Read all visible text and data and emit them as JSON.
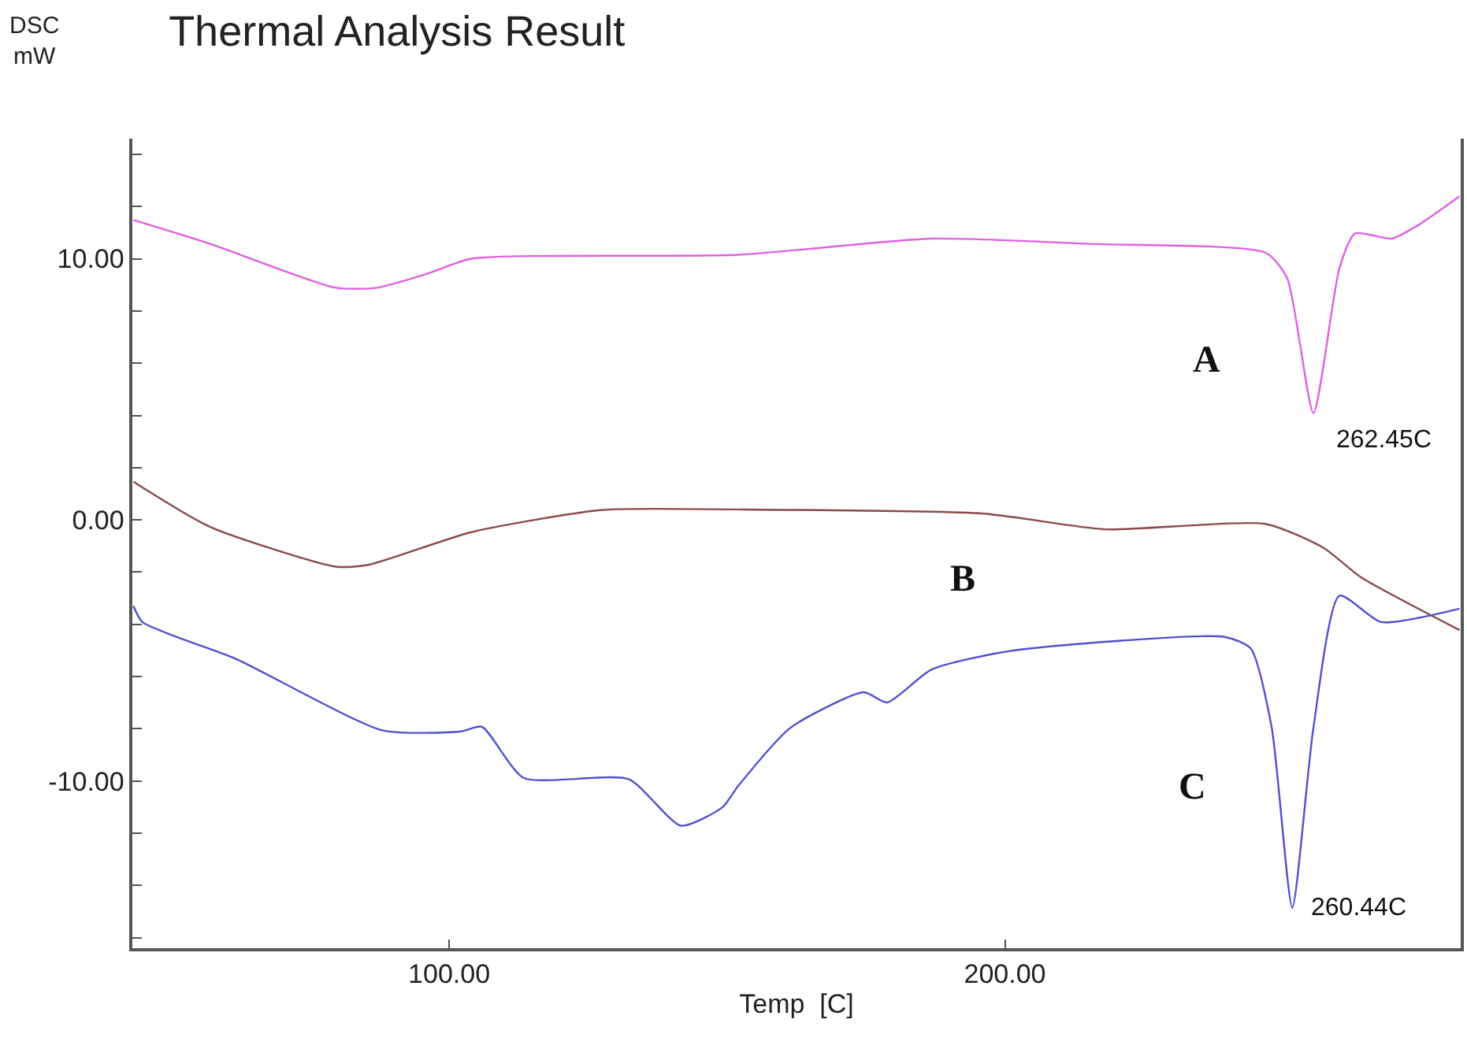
{
  "chart_data": {
    "type": "line",
    "title": "Thermal Analysis Result",
    "ylabel": "DSC\nmW",
    "xlabel": "Temp  [C]",
    "xlim": [
      43,
      282
    ],
    "ylim": [
      -16.4,
      14.6
    ],
    "xticks": [
      {
        "value": 100,
        "label": "100.00"
      },
      {
        "value": 200,
        "label": "200.00"
      }
    ],
    "yticks": [
      {
        "value": -16,
        "label": null
      },
      {
        "value": -14,
        "label": null
      },
      {
        "value": -12,
        "label": null
      },
      {
        "value": -10,
        "label": "-10.00"
      },
      {
        "value": -8,
        "label": null
      },
      {
        "value": -6,
        "label": null
      },
      {
        "value": -4,
        "label": null
      },
      {
        "value": -2,
        "label": null
      },
      {
        "value": 0,
        "label": "0.00"
      },
      {
        "value": 2,
        "label": null
      },
      {
        "value": 4,
        "label": null
      },
      {
        "value": 6,
        "label": null
      },
      {
        "value": 8,
        "label": null
      },
      {
        "value": 10,
        "label": "10.00"
      },
      {
        "value": 12,
        "label": null
      },
      {
        "value": 14,
        "label": null
      }
    ],
    "legend": false,
    "marker": "none",
    "line_style": "solid",
    "series": [
      {
        "name": "A",
        "color": "#e060e0",
        "x": [
          43.2,
          57,
          79.6,
          87.1,
          96.5,
          104,
          152,
          186.8,
          215,
          247,
          250.8,
          255.5,
          260.2,
          263,
          269.6,
          274.3,
          281.8
        ],
        "values": [
          11.48,
          10.57,
          8.89,
          8.89,
          9.46,
          10.0,
          10.15,
          10.77,
          10.57,
          10.22,
          9.25,
          4.09,
          9.66,
          10.97,
          10.77,
          11.28,
          12.39
        ]
      },
      {
        "name": "B",
        "color": "#8b4a4a",
        "x": [
          43.2,
          57,
          79.6,
          85.3,
          104,
          127.5,
          152,
          196.2,
          217.9,
          247,
          257.4,
          264,
          281.8
        ],
        "values": [
          1.46,
          -0.27,
          -1.79,
          -1.73,
          -0.47,
          0.38,
          0.4,
          0.24,
          -0.36,
          -0.16,
          -1.08,
          -2.19,
          -4.22
        ]
      },
      {
        "name": "C",
        "color": "#5050d0",
        "x": [
          43.2,
          44.8,
          61.7,
          88,
          102.1,
          105.9,
          113.4,
          132.3,
          141.7,
          149.2,
          152,
          161.4,
          174.6,
          178.8,
          186.8,
          200.9,
          239.5,
          244.2,
          248,
          251.7,
          255.5,
          260.2,
          267.7,
          281.8
        ],
        "values": [
          -3.3,
          -3.91,
          -5.33,
          -8.06,
          -8.1,
          -7.92,
          -9.88,
          -9.93,
          -11.71,
          -11.0,
          -10.19,
          -7.96,
          -6.6,
          -6.99,
          -5.73,
          -5.02,
          -4.48,
          -4.92,
          -7.96,
          -14.85,
          -7.96,
          -2.9,
          -3.91,
          -3.4
        ]
      }
    ],
    "annotations": [
      {
        "text": "262.45C",
        "x": 255.5,
        "y": 4.09
      },
      {
        "text": "260.44C",
        "x": 251.7,
        "y": -14.85
      }
    ]
  }
}
